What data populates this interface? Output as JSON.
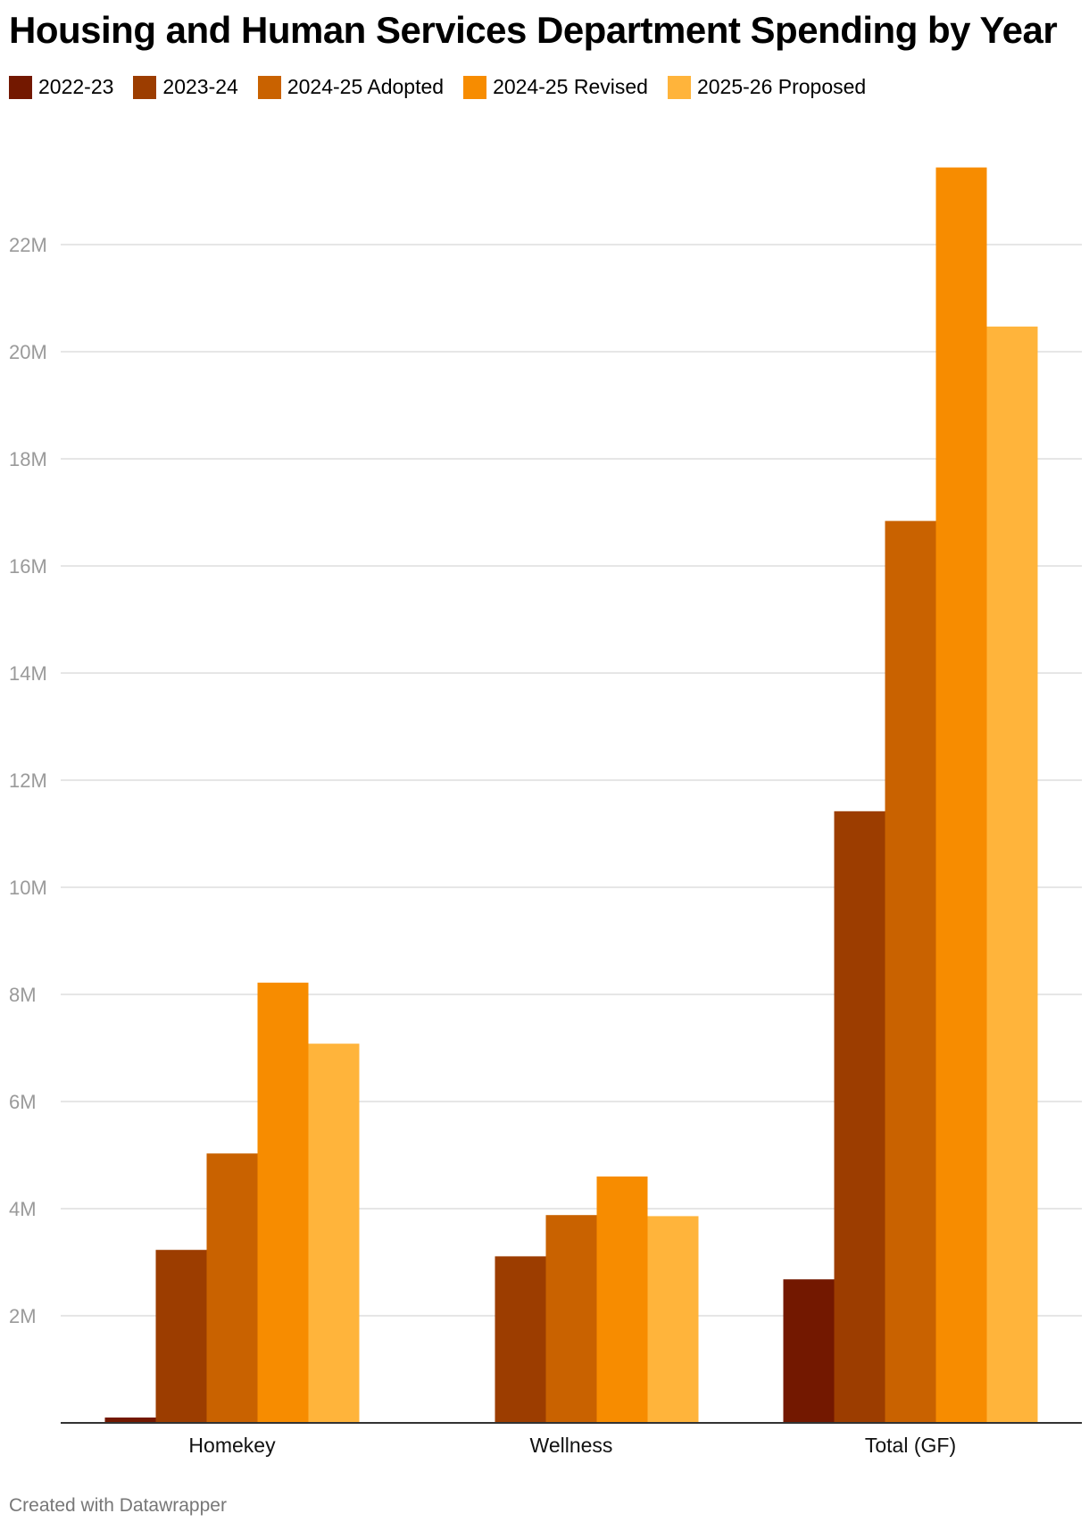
{
  "title": "Housing and Human Services Department Spending by Year",
  "footer": "Created with Datawrapper",
  "legend": [
    {
      "label": "2022-23",
      "color": "#731800"
    },
    {
      "label": "2023-24",
      "color": "#9c3d00"
    },
    {
      "label": "2024-25 Adopted",
      "color": "#c96200"
    },
    {
      "label": "2024-25 Revised",
      "color": "#f78c00"
    },
    {
      "label": "2025-26 Proposed",
      "color": "#ffb43b"
    }
  ],
  "chart_data": {
    "type": "bar",
    "title": "Housing and Human Services Department Spending by Year",
    "xlabel": "",
    "ylabel": "",
    "categories": [
      "Homekey",
      "Wellness",
      "Total (GF)"
    ],
    "series": [
      {
        "name": "2022-23",
        "color": "#731800",
        "values": [
          100000,
          0,
          2680000
        ]
      },
      {
        "name": "2023-24",
        "color": "#9c3d00",
        "values": [
          3230000,
          3110000,
          11420000
        ]
      },
      {
        "name": "2024-25 Adopted",
        "color": "#c96200",
        "values": [
          5030000,
          3880000,
          16840000
        ]
      },
      {
        "name": "2024-25 Revised",
        "color": "#f78c00",
        "values": [
          8220000,
          4600000,
          23440000
        ]
      },
      {
        "name": "2025-26 Proposed",
        "color": "#ffb43b",
        "values": [
          7080000,
          3860000,
          20470000
        ]
      }
    ],
    "yticks": [
      {
        "value": 2000000,
        "label": "2M"
      },
      {
        "value": 4000000,
        "label": "4M"
      },
      {
        "value": 6000000,
        "label": "6M"
      },
      {
        "value": 8000000,
        "label": "8M"
      },
      {
        "value": 10000000,
        "label": "10M"
      },
      {
        "value": 12000000,
        "label": "12M"
      },
      {
        "value": 14000000,
        "label": "14M"
      },
      {
        "value": 16000000,
        "label": "16M"
      },
      {
        "value": 18000000,
        "label": "18M"
      },
      {
        "value": 20000000,
        "label": "20M"
      },
      {
        "value": 22000000,
        "label": "22M"
      }
    ],
    "ylim": [
      0,
      24000000
    ],
    "grid": true,
    "legend_position": "top-left"
  }
}
